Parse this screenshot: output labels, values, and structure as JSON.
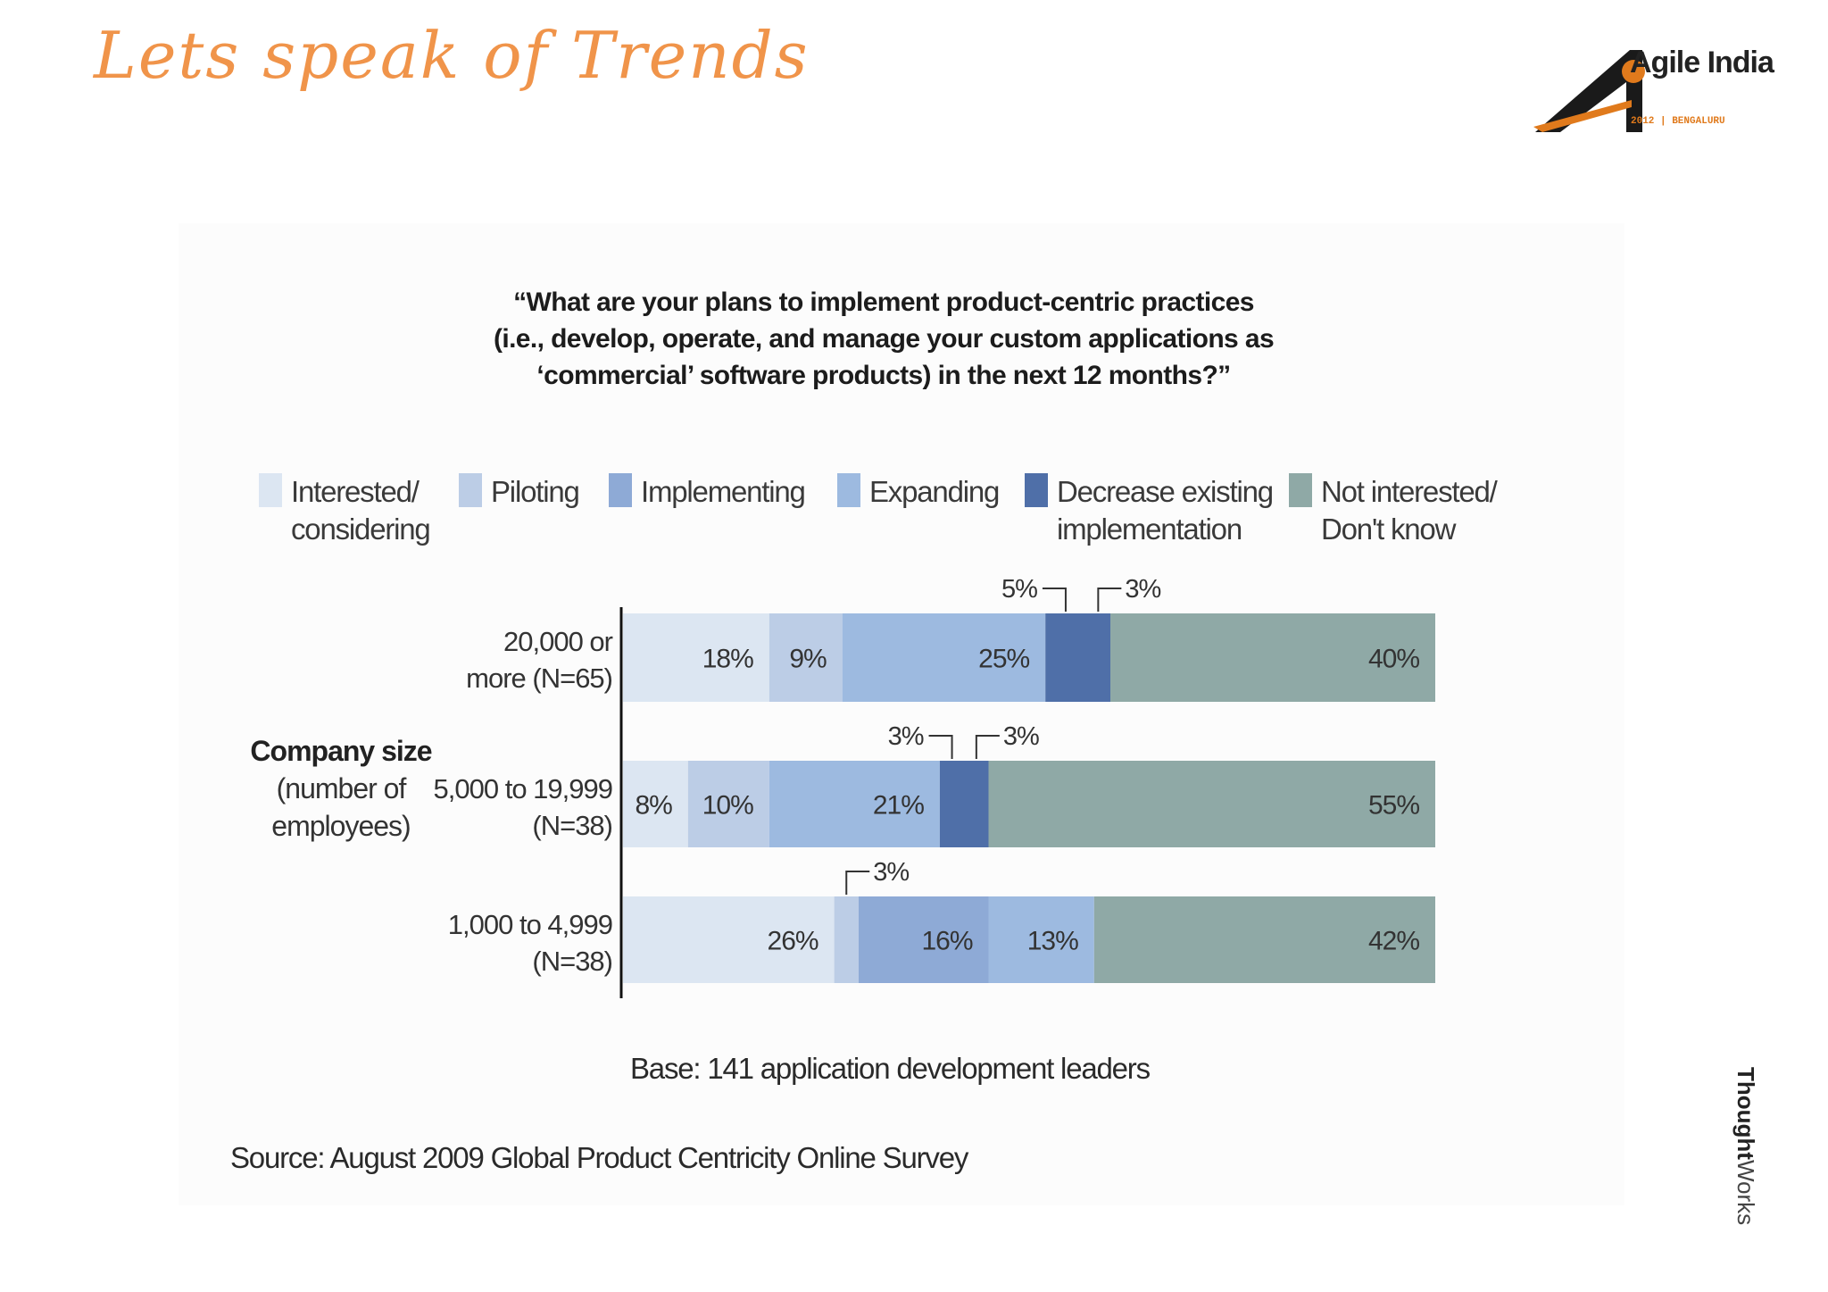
{
  "slide": {
    "title": "Lets speak of Trends",
    "logo_text": "Agile India",
    "logo_subtext": "2012 | BENGALURU",
    "brand_bold": "Thought",
    "brand_light": "Works"
  },
  "colors": {
    "interested": "#dce6f2",
    "piloting": "#bccde6",
    "implementing": "#8eaad6",
    "expanding": "#9dbae0",
    "decrease": "#4f6fa8",
    "not_interested": "#8fa9a6",
    "accent": "#f0944a"
  },
  "chart_data": {
    "type": "bar",
    "orientation": "horizontal",
    "stacked": true,
    "title": "“What are your plans to implement product-centric practices (i.e., develop, operate, and manage your custom applications as ‘commercial’ software products) in the next 12 months?”",
    "title_lines": [
      "“What are your plans to implement product-centric practices",
      "(i.e., develop, operate, and manage your custom applications as",
      "‘commercial’ software products) in the next 12 months?”"
    ],
    "ylabel": "Company size",
    "ylabel_sub": "(number of\nemployees)",
    "categories": [
      {
        "line1": "20,000 or",
        "line2": "more (N=65)"
      },
      {
        "line1": "5,000 to 19,999",
        "line2": "(N=38)"
      },
      {
        "line1": "1,000 to 4,999",
        "line2": "(N=38)"
      }
    ],
    "series": [
      {
        "name": "Interested/\nconsidering",
        "color_key": "interested",
        "values": [
          18,
          8,
          26
        ],
        "labels": [
          "18%",
          "8%",
          "26%"
        ]
      },
      {
        "name": "Piloting",
        "color_key": "piloting",
        "values": [
          9,
          10,
          3
        ],
        "labels": [
          "9%",
          "10%",
          "3%"
        ]
      },
      {
        "name": "Implementing",
        "color_key": "implementing",
        "values": [
          0,
          0,
          16
        ],
        "labels": [
          "",
          "",
          "16%"
        ]
      },
      {
        "name": "Expanding",
        "color_key": "expanding",
        "values": [
          25,
          21,
          13
        ],
        "labels": [
          "25%",
          "21%",
          "13%"
        ]
      },
      {
        "name": "Decrease existing\nimplementation",
        "color_key": "decrease",
        "values": [
          8,
          6,
          0
        ],
        "labels": [
          "",
          "",
          ""
        ]
      },
      {
        "name": "Not interested/\nDon't know",
        "color_key": "not_interested",
        "values": [
          40,
          55,
          42
        ],
        "labels": [
          "40%",
          "55%",
          "42%"
        ]
      }
    ],
    "callouts": [
      [
        {
          "label": "5%"
        },
        {
          "label": "3%"
        }
      ],
      [
        {
          "label": "3%"
        },
        {
          "label": "3%"
        }
      ],
      [
        {
          "label": "3%"
        }
      ]
    ],
    "xlim": [
      0,
      100
    ],
    "base_note": "Base: 141 application development leaders",
    "source": "Source: August 2009 Global Product Centricity Online Survey"
  }
}
